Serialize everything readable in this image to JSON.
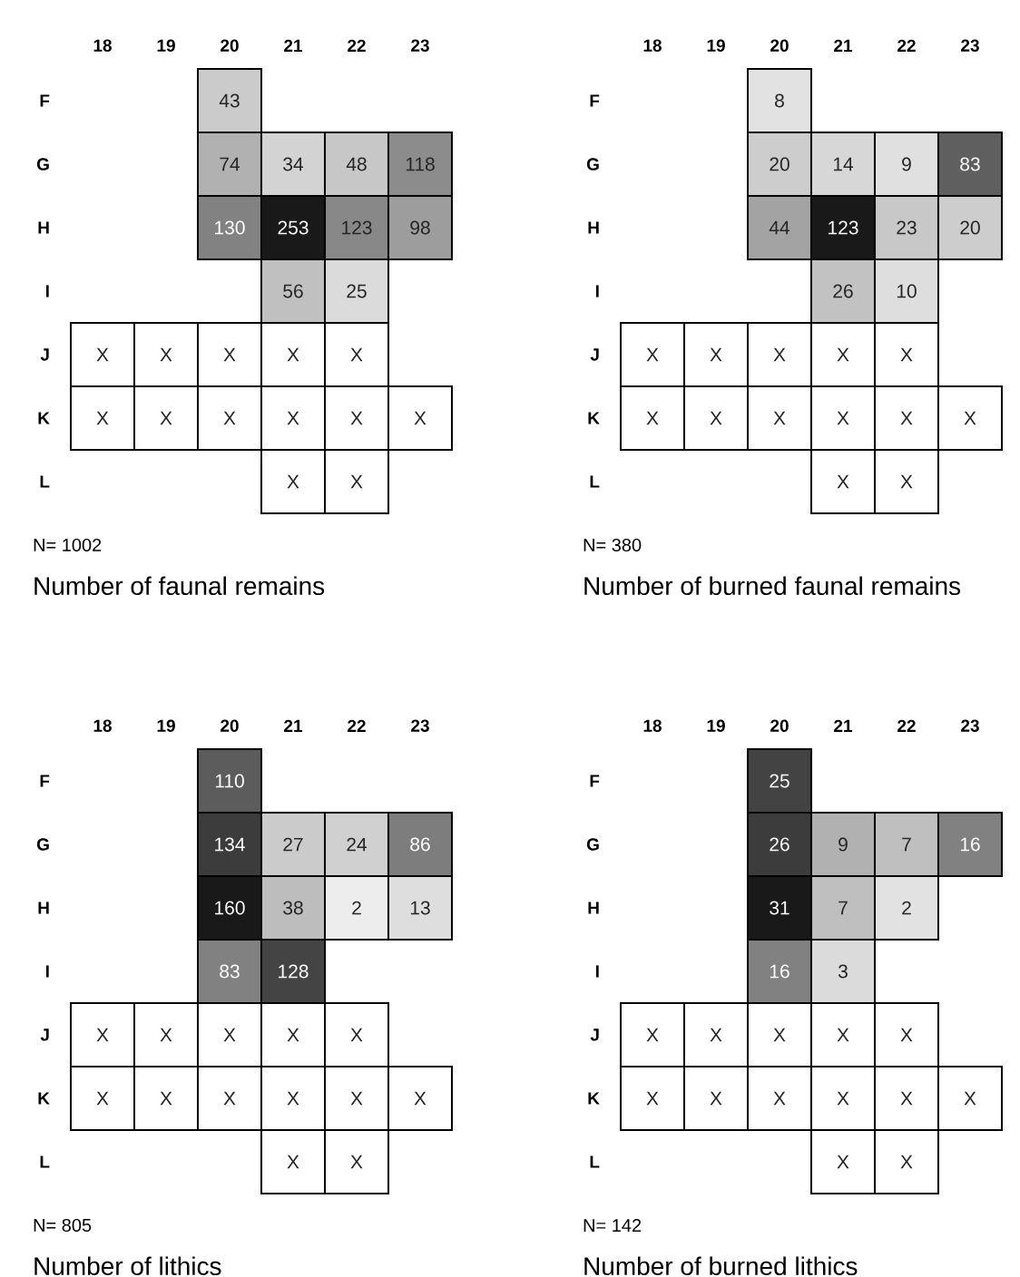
{
  "chart_data": [
    {
      "type": "heatmap",
      "title": "Number of faunal remains",
      "annotations": [
        "N= 1002"
      ],
      "categories": [
        "18",
        "19",
        "20",
        "21",
        "22",
        "23"
      ],
      "y_categories": [
        "F",
        "G",
        "H",
        "I",
        "J",
        "K",
        "L"
      ],
      "cells": [
        [
          null,
          null,
          43,
          null,
          null,
          null
        ],
        [
          null,
          null,
          74,
          34,
          48,
          118
        ],
        [
          null,
          null,
          130,
          253,
          123,
          98
        ],
        [
          null,
          null,
          null,
          56,
          25,
          null
        ],
        [
          null,
          null,
          null,
          null,
          null,
          null
        ],
        [
          null,
          null,
          null,
          null,
          null,
          null
        ],
        [
          null,
          null,
          null,
          null,
          null,
          null
        ]
      ],
      "cell_labels": [
        [
          null,
          null,
          "43",
          null,
          null,
          null
        ],
        [
          null,
          null,
          "74",
          "34",
          "48",
          "118"
        ],
        [
          null,
          null,
          "130",
          "253",
          "123",
          "98"
        ],
        [
          null,
          null,
          null,
          "56",
          "25",
          null
        ],
        [
          "X",
          "X",
          "X",
          "X",
          "X",
          null
        ],
        [
          "X",
          "X",
          "X",
          "X",
          "X",
          "X"
        ],
        [
          null,
          null,
          null,
          "X",
          "X",
          null
        ]
      ]
    },
    {
      "type": "heatmap",
      "title": "Number of burned faunal remains",
      "annotations": [
        "N= 380"
      ],
      "categories": [
        "18",
        "19",
        "20",
        "21",
        "22",
        "23"
      ],
      "y_categories": [
        "F",
        "G",
        "H",
        "I",
        "J",
        "K",
        "L"
      ],
      "cells": [
        [
          null,
          null,
          8,
          null,
          null,
          null
        ],
        [
          null,
          null,
          20,
          14,
          9,
          83
        ],
        [
          null,
          null,
          44,
          123,
          23,
          20
        ],
        [
          null,
          null,
          null,
          26,
          10,
          null
        ],
        [
          null,
          null,
          null,
          null,
          null,
          null
        ],
        [
          null,
          null,
          null,
          null,
          null,
          null
        ],
        [
          null,
          null,
          null,
          null,
          null,
          null
        ]
      ],
      "cell_labels": [
        [
          null,
          null,
          "8",
          null,
          null,
          null
        ],
        [
          null,
          null,
          "20",
          "14",
          "9",
          "83"
        ],
        [
          null,
          null,
          "44",
          "123",
          "23",
          "20"
        ],
        [
          null,
          null,
          null,
          "26",
          "10",
          null
        ],
        [
          "X",
          "X",
          "X",
          "X",
          "X",
          null
        ],
        [
          "X",
          "X",
          "X",
          "X",
          "X",
          "X"
        ],
        [
          null,
          null,
          null,
          "X",
          "X",
          null
        ]
      ]
    },
    {
      "type": "heatmap",
      "title": "Number of lithics",
      "annotations": [
        "N= 805"
      ],
      "categories": [
        "18",
        "19",
        "20",
        "21",
        "22",
        "23"
      ],
      "y_categories": [
        "F",
        "G",
        "H",
        "I",
        "J",
        "K",
        "L"
      ],
      "cells": [
        [
          null,
          null,
          110,
          null,
          null,
          null
        ],
        [
          null,
          null,
          134,
          27,
          24,
          86
        ],
        [
          null,
          null,
          160,
          38,
          2,
          13
        ],
        [
          null,
          null,
          83,
          128,
          null,
          null
        ],
        [
          null,
          null,
          null,
          null,
          null,
          null
        ],
        [
          null,
          null,
          null,
          null,
          null,
          null
        ],
        [
          null,
          null,
          null,
          null,
          null,
          null
        ]
      ],
      "cell_labels": [
        [
          null,
          null,
          "110",
          null,
          null,
          null
        ],
        [
          null,
          null,
          "134",
          "27",
          "24",
          "86"
        ],
        [
          null,
          null,
          "160",
          "38",
          "2",
          "13"
        ],
        [
          null,
          null,
          "83",
          "128",
          null,
          null
        ],
        [
          "X",
          "X",
          "X",
          "X",
          "X",
          null
        ],
        [
          "X",
          "X",
          "X",
          "X",
          "X",
          "X"
        ],
        [
          null,
          null,
          null,
          "X",
          "X",
          null
        ]
      ]
    },
    {
      "type": "heatmap",
      "title": "Number of burned lithics",
      "annotations": [
        "N= 142"
      ],
      "categories": [
        "18",
        "19",
        "20",
        "21",
        "22",
        "23"
      ],
      "y_categories": [
        "F",
        "G",
        "H",
        "I",
        "J",
        "K",
        "L"
      ],
      "cells": [
        [
          null,
          null,
          25,
          null,
          null,
          null
        ],
        [
          null,
          null,
          26,
          9,
          7,
          16
        ],
        [
          null,
          null,
          31,
          7,
          2,
          null
        ],
        [
          null,
          null,
          16,
          3,
          null,
          null
        ],
        [
          null,
          null,
          null,
          null,
          null,
          null
        ],
        [
          null,
          null,
          null,
          null,
          null,
          null
        ],
        [
          null,
          null,
          null,
          null,
          null,
          null
        ]
      ],
      "cell_labels": [
        [
          null,
          null,
          "25",
          null,
          null,
          null
        ],
        [
          null,
          null,
          "26",
          "9",
          "7",
          "16"
        ],
        [
          null,
          null,
          "31",
          "7",
          "2",
          null
        ],
        [
          null,
          null,
          "16",
          "3",
          null,
          null
        ],
        [
          "X",
          "X",
          "X",
          "X",
          "X",
          null
        ],
        [
          "X",
          "X",
          "X",
          "X",
          "X",
          "X"
        ],
        [
          null,
          null,
          null,
          "X",
          "X",
          null
        ]
      ]
    }
  ]
}
